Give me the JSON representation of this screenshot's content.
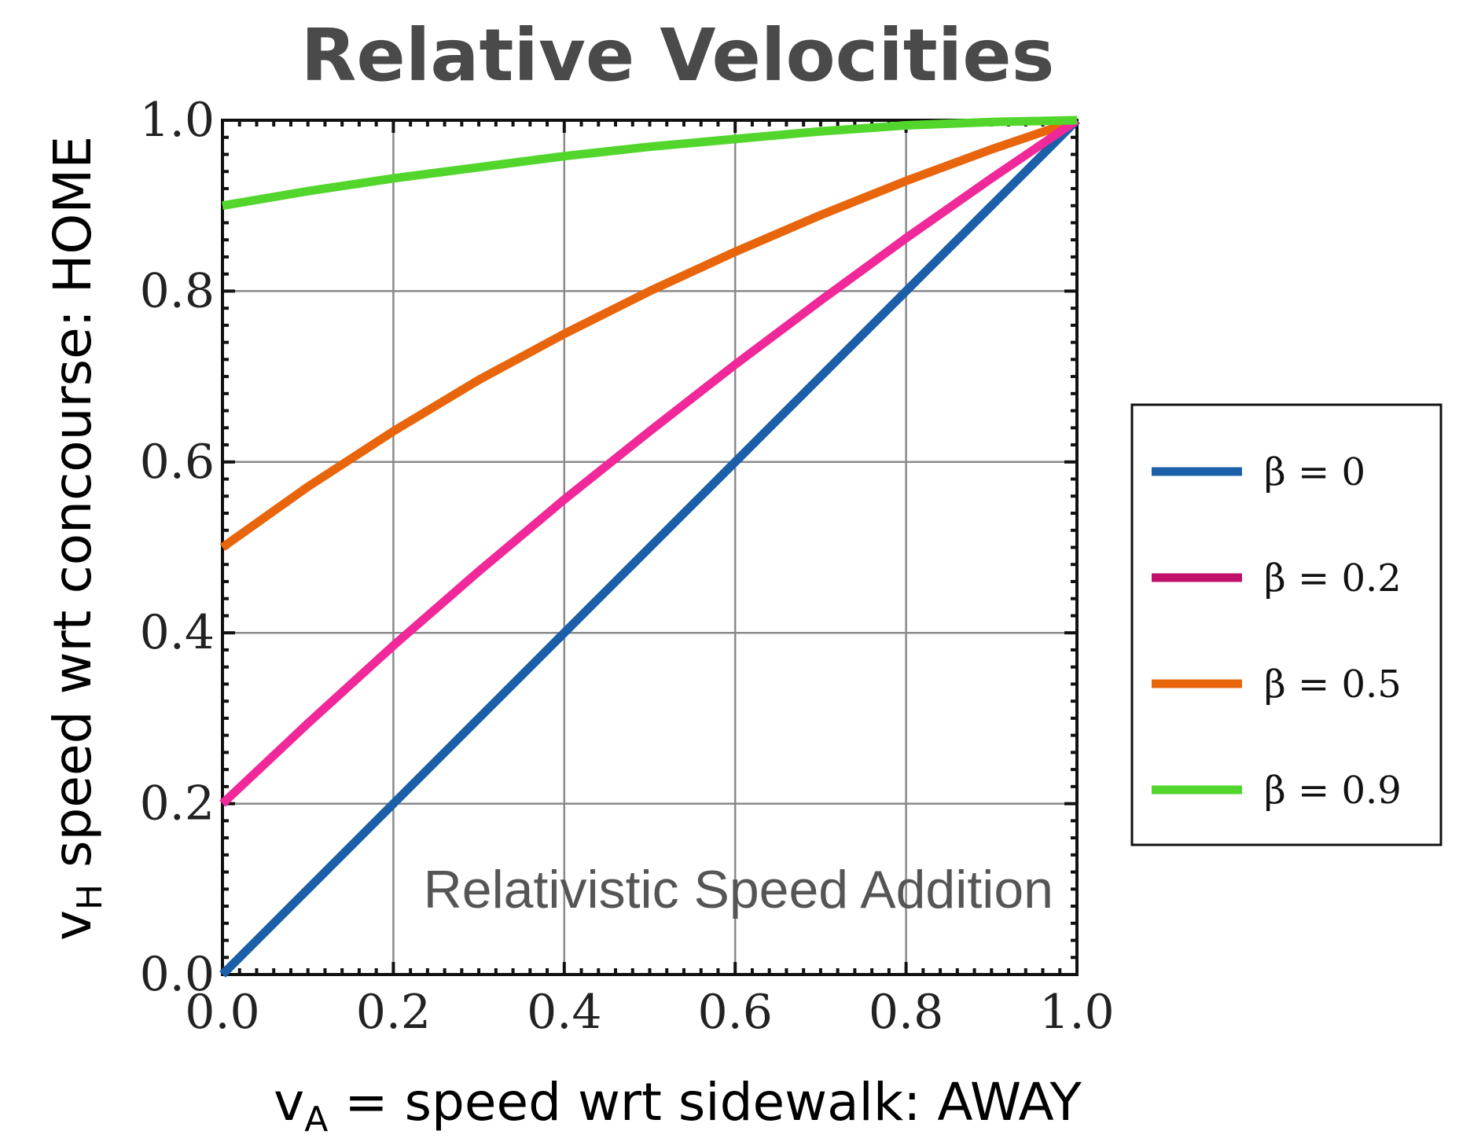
{
  "chart_data": {
    "type": "line",
    "title": "Relative Velocities",
    "xlabel": {
      "main": "v",
      "sub": "A",
      "rest": " = speed wrt sidewalk: AWAY"
    },
    "ylabel": {
      "main": "v",
      "sub": "H",
      "rest": " speed wrt concourse: HOME"
    },
    "annotation": "Relativistic Speed Addition",
    "xlim": [
      0,
      1
    ],
    "ylim": [
      0,
      1
    ],
    "x_ticks": [
      "0.0",
      "0.2",
      "0.4",
      "0.6",
      "0.8",
      "1.0"
    ],
    "y_ticks": [
      "0.0",
      "0.2",
      "0.4",
      "0.6",
      "0.8",
      "1.0"
    ],
    "grid": true,
    "legend_position": "right",
    "x": [
      0.0,
      0.1,
      0.2,
      0.3,
      0.4,
      0.5,
      0.6,
      0.7,
      0.8,
      0.9,
      1.0
    ],
    "series": [
      {
        "name": "β = 0",
        "color": "#1a5fa8",
        "values": [
          0.0,
          0.1,
          0.2,
          0.3,
          0.4,
          0.5,
          0.6,
          0.7,
          0.8,
          0.9,
          1.0
        ]
      },
      {
        "name": "β = 0.2",
        "color": "#f0289a",
        "legend_color": "#c0106a",
        "values": [
          0.2,
          0.294,
          0.385,
          0.472,
          0.556,
          0.636,
          0.714,
          0.789,
          0.862,
          0.932,
          1.0
        ]
      },
      {
        "name": "β = 0.5",
        "color": "#e8650c",
        "values": [
          0.5,
          0.571,
          0.636,
          0.696,
          0.75,
          0.8,
          0.846,
          0.889,
          0.929,
          0.966,
          1.0
        ]
      },
      {
        "name": "β = 0.9",
        "color": "#52d62c",
        "values": [
          0.9,
          0.917,
          0.932,
          0.945,
          0.958,
          0.969,
          0.978,
          0.987,
          0.994,
          0.998,
          1.0
        ]
      }
    ]
  }
}
